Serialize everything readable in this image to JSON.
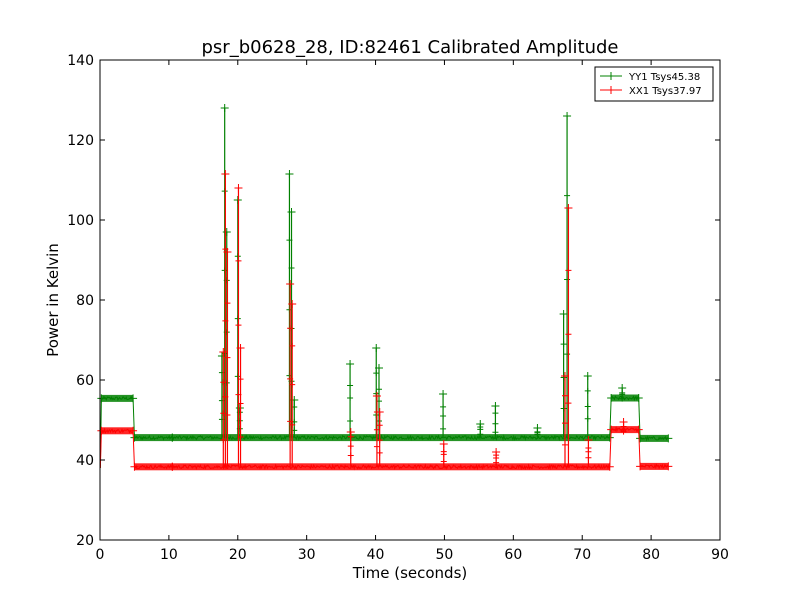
{
  "chart_data": {
    "type": "line",
    "title": "psr_b0628_28, ID:82461 Calibrated Amplitude",
    "xlabel": "Time (seconds)",
    "ylabel": "Power in Kelvin",
    "xlim": [
      0,
      90
    ],
    "ylim": [
      20,
      140
    ],
    "xticks": [
      "0",
      "10",
      "20",
      "30",
      "40",
      "50",
      "60",
      "70",
      "80",
      "90"
    ],
    "yticks": [
      "20",
      "40",
      "60",
      "80",
      "100",
      "120",
      "140"
    ],
    "grid": false,
    "legend_position": "top-right",
    "marker": "+",
    "series": [
      {
        "name": "YY1 Tsys45.38",
        "color": "#008000",
        "baseline": [
          {
            "x": [
              0.2,
              4.8
            ],
            "y": 55.4
          },
          {
            "x": [
              5.0,
              10.5
            ],
            "y": 45.6
          },
          {
            "x": [
              10.5,
              74.0
            ],
            "y": 45.6
          },
          {
            "x": [
              74.2,
              78.2
            ],
            "y": 55.5
          },
          {
            "x": [
              78.4,
              82.5
            ],
            "y": 45.4
          }
        ],
        "spikes": [
          {
            "x": 17.7,
            "y": 66
          },
          {
            "x": 18.1,
            "y": 128
          },
          {
            "x": 18.4,
            "y": 97
          },
          {
            "x": 20.0,
            "y": 105
          },
          {
            "x": 20.3,
            "y": 53
          },
          {
            "x": 27.5,
            "y": 111.5
          },
          {
            "x": 27.8,
            "y": 102
          },
          {
            "x": 28.2,
            "y": 55
          },
          {
            "x": 36.3,
            "y": 64
          },
          {
            "x": 40.1,
            "y": 68
          },
          {
            "x": 40.5,
            "y": 63
          },
          {
            "x": 49.8,
            "y": 56.5
          },
          {
            "x": 55.2,
            "y": 49
          },
          {
            "x": 57.4,
            "y": 53.5
          },
          {
            "x": 63.5,
            "y": 48
          },
          {
            "x": 67.3,
            "y": 76.5
          },
          {
            "x": 67.8,
            "y": 126
          },
          {
            "x": 70.8,
            "y": 61
          },
          {
            "x": 75.8,
            "y": 58
          }
        ]
      },
      {
        "name": "XX1 Tsys37.97",
        "color": "#ff0000",
        "baseline": [
          {
            "x": [
              0.2,
              4.8
            ],
            "y": 47.3
          },
          {
            "x": [
              5.0,
              10.5
            ],
            "y": 38.3
          },
          {
            "x": [
              10.5,
              74.0
            ],
            "y": 38.3
          },
          {
            "x": [
              74.2,
              78.2
            ],
            "y": 47.6
          },
          {
            "x": [
              78.4,
              82.5
            ],
            "y": 38.4
          }
        ],
        "spikes": [
          {
            "x": 17.9,
            "y": 67
          },
          {
            "x": 18.2,
            "y": 111.5
          },
          {
            "x": 18.5,
            "y": 92
          },
          {
            "x": 20.1,
            "y": 108
          },
          {
            "x": 20.4,
            "y": 68
          },
          {
            "x": 27.6,
            "y": 84
          },
          {
            "x": 27.9,
            "y": 79
          },
          {
            "x": 36.4,
            "y": 47
          },
          {
            "x": 40.2,
            "y": 56
          },
          {
            "x": 40.6,
            "y": 52
          },
          {
            "x": 49.9,
            "y": 44
          },
          {
            "x": 57.5,
            "y": 42
          },
          {
            "x": 67.5,
            "y": 61
          },
          {
            "x": 68.0,
            "y": 103
          },
          {
            "x": 70.9,
            "y": 45
          },
          {
            "x": 76.0,
            "y": 49.5
          }
        ]
      }
    ]
  }
}
